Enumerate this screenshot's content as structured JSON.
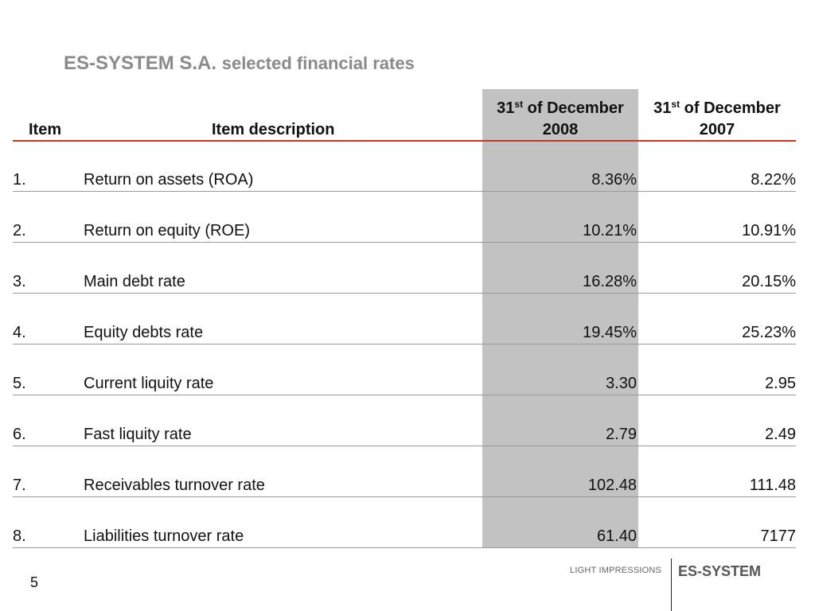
{
  "title": {
    "brand": "ES-SYSTEM S.A.",
    "rest": "selected financial rates"
  },
  "table": {
    "headers": {
      "item": "Item",
      "description": "Item description",
      "col2008_prefix": "31",
      "col2008_sup": "st",
      "col2008_suffix": " of December",
      "col2008_year": "2008",
      "col2007_prefix": "31",
      "col2007_sup": "st",
      "col2007_suffix": " of December",
      "col2007_year": "2007"
    },
    "rows": [
      {
        "num": "1.",
        "desc": "Return on assets (ROA)",
        "v2008": "8.36%",
        "v2007": "8.22%"
      },
      {
        "num": "2.",
        "desc": "Return on equity (ROE)",
        "v2008": "10.21%",
        "v2007": "10.91%"
      },
      {
        "num": "3.",
        "desc": "Main debt rate",
        "v2008": "16.28%",
        "v2007": "20.15%"
      },
      {
        "num": "4.",
        "desc": "Equity debts rate",
        "v2008": "19.45%",
        "v2007": "25.23%"
      },
      {
        "num": "5.",
        "desc": "Current liquity rate",
        "v2008": "3.30",
        "v2007": "2.95"
      },
      {
        "num": "6.",
        "desc": "Fast liquity rate",
        "v2008": "2.79",
        "v2007": "2.49"
      },
      {
        "num": "7.",
        "desc": "Receivables turnover rate",
        "v2008": "102.48",
        "v2007": "111.48"
      },
      {
        "num": "8.",
        "desc": "Liabilities turnover rate",
        "v2008": "61.40",
        "v2007": "7177"
      }
    ]
  },
  "footer": {
    "page_number": "5",
    "tagline": "LIGHT IMPRESSIONS",
    "brand": "ES-SYSTEM"
  },
  "colors": {
    "title_gray": "#8a8a8a",
    "highlight_column": "#c2c2c2",
    "header_rule": "#c0392b",
    "row_rule": "#9a9a9a"
  }
}
